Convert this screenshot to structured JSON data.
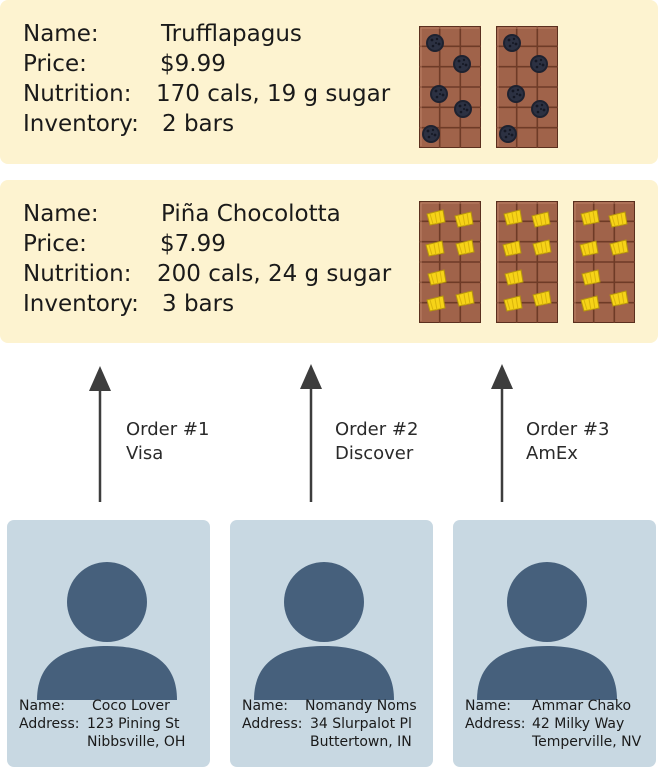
{
  "colors": {
    "product_card_bg": "#fdf3d0",
    "customer_card_bg": "#c8d8e2",
    "avatar": "#46607c",
    "chocolate": "#a0634a",
    "arrow": "#3d3d3d"
  },
  "labels": {
    "name": "Name:",
    "price": "Price:",
    "nutrition": "Nutrition:",
    "inventory": "Inventory:",
    "address": "Address:"
  },
  "products": [
    {
      "name": "Trufflapagus",
      "price": "$9.99",
      "nutrition": "170 cals, 19 g sugar",
      "inventory": "2 bars",
      "bar_count": 2,
      "topping_icon": "cookie-crumb-icon"
    },
    {
      "name": "Piña Chocolotta",
      "price": "$7.99",
      "nutrition": "200 cals, 24 g sugar",
      "inventory": "3 bars",
      "bar_count": 3,
      "topping_icon": "pineapple-chunk-icon"
    }
  ],
  "orders": [
    {
      "number": "Order #1",
      "payment": "Visa"
    },
    {
      "number": "Order #2",
      "payment": "Discover"
    },
    {
      "number": "Order #3",
      "payment": "AmEx"
    }
  ],
  "customers": [
    {
      "name": "Coco Lover",
      "address_line1": "123 Pining St",
      "address_line2": "Nibbsville, OH"
    },
    {
      "name": "Nomandy Noms",
      "address_line1": "34 Slurpalot Pl",
      "address_line2": "Buttertown, IN"
    },
    {
      "name": "Ammar Chako",
      "address_line1": "42 Milky Way",
      "address_line2": "Temperville, NV"
    }
  ]
}
